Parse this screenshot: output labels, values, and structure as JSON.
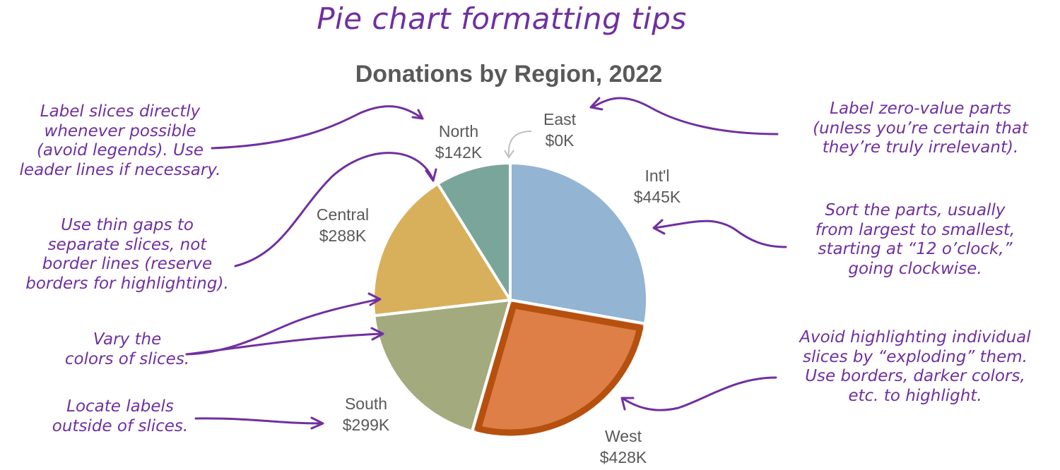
{
  "header": {
    "title": "Pie chart formatting tips"
  },
  "chart_data": {
    "type": "pie",
    "title": "Donations by Region, 2022",
    "start_angle": "12 o'clock",
    "direction": "clockwise",
    "categories": [
      "Int'l",
      "West",
      "South",
      "Central",
      "North",
      "East"
    ],
    "values": [
      445,
      428,
      299,
      288,
      142,
      0
    ],
    "value_labels": [
      "$445K",
      "$428K",
      "$299K",
      "$288K",
      "$142K",
      "$0K"
    ],
    "unit": "$K",
    "colors": [
      "#93b4d2",
      "#dd7f46",
      "#a3aa7e",
      "#d8b05c",
      "#7aa59b",
      "#cccccc"
    ],
    "highlighted": "West",
    "highlight_border_color": "#b5500f",
    "legend": "none (direct labels)"
  },
  "labels": {
    "intl": {
      "name": "Int'l",
      "value": "$445K"
    },
    "west": {
      "name": "West",
      "value": "$428K"
    },
    "south": {
      "name": "South",
      "value": "$299K"
    },
    "central": {
      "name": "Central",
      "value": "$288K"
    },
    "north": {
      "name": "North",
      "value": "$142K"
    },
    "east": {
      "name": "East",
      "value": "$0K"
    }
  },
  "tips": {
    "label_directly": [
      "Label slices directly",
      "whenever possible",
      "(avoid legends). Use",
      "leader lines if necessary."
    ],
    "thin_gaps": [
      "Use thin gaps to",
      "separate slices, not",
      "border lines (reserve",
      "borders for highlighting)."
    ],
    "vary_colors": [
      "Vary the",
      "colors of slices."
    ],
    "locate_labels": [
      "Locate labels",
      "outside of slices."
    ],
    "zero_value": [
      "Label zero-value parts",
      "(unless you’re certain that",
      "they’re truly irrelevant)."
    ],
    "sort_parts": [
      "Sort the parts, usually",
      "from largest to smallest,",
      "starting at “12 o’clock,”",
      "going clockwise."
    ],
    "avoid_exploding": [
      "Avoid highlighting individual",
      "slices by “exploding” them.",
      "Use borders, darker colors,",
      "etc. to highlight."
    ]
  },
  "colors": {
    "annotation": "#7030a0",
    "label_text": "#595959",
    "leader_line": "#bfbfbf"
  }
}
